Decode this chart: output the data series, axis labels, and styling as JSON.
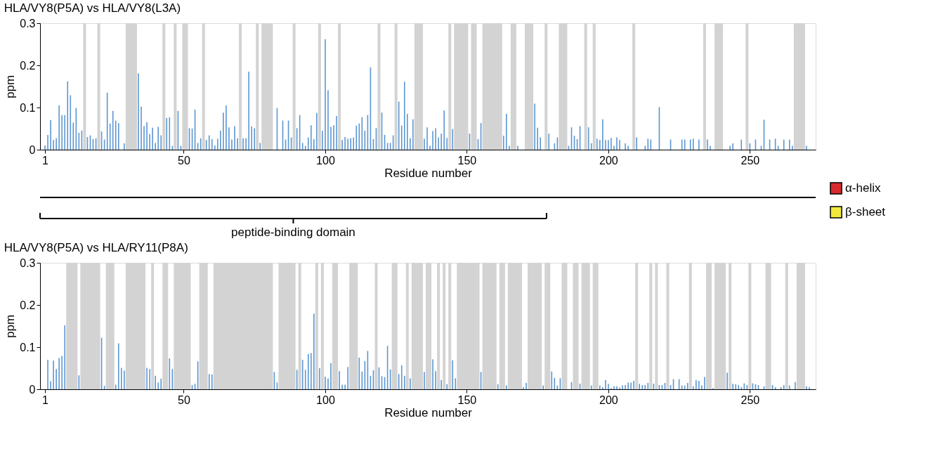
{
  "chart_data": [
    {
      "type": "bar",
      "title": "HLA/VY8(P5A) vs HLA/VY8(L3A)",
      "xlabel": "Residue number",
      "ylabel": "ppm",
      "xlim": [
        0.5,
        272
      ],
      "xticks": [
        1,
        50,
        100,
        150,
        200,
        250
      ],
      "ylim": [
        0,
        0.3
      ],
      "yticks": [
        0,
        0.1,
        0.2,
        0.3
      ],
      "grid": false,
      "series": [
        {
          "color": "#5b96d1",
          "x": [
            1,
            2,
            3,
            4,
            5,
            6,
            7,
            8,
            9,
            10,
            11,
            12,
            13,
            14,
            16,
            17,
            18,
            19,
            21,
            22,
            23,
            24,
            25,
            26,
            27,
            29,
            34,
            35,
            36,
            37,
            38,
            39,
            40,
            41,
            42,
            44,
            45,
            46,
            48,
            49,
            52,
            53,
            54,
            55,
            56,
            58,
            59,
            60,
            61,
            62,
            63,
            64,
            65,
            66,
            67,
            68,
            69,
            71,
            72,
            73,
            74,
            75,
            77,
            83,
            84,
            85,
            86,
            87,
            88,
            90,
            91,
            92,
            93,
            94,
            95,
            96,
            97,
            99,
            100,
            101,
            102,
            103,
            104,
            106,
            107,
            108,
            109,
            110,
            111,
            112,
            113,
            114,
            115,
            116,
            117,
            118,
            120,
            121,
            122,
            123,
            124,
            126,
            127,
            128,
            129,
            130,
            131,
            135,
            136,
            137,
            138,
            139,
            140,
            141,
            142,
            143,
            145,
            151,
            154,
            155,
            163,
            164,
            165,
            168,
            174,
            175,
            176,
            179,
            181,
            182,
            186,
            187,
            188,
            189,
            190,
            193,
            194,
            196,
            197,
            198,
            199,
            200,
            201,
            202,
            203,
            204,
            206,
            207,
            210,
            213,
            214,
            215,
            218,
            222,
            226,
            227,
            229,
            230,
            232,
            235,
            236,
            243,
            244,
            247,
            250,
            252,
            254,
            255,
            257,
            259,
            260,
            262,
            264,
            265,
            270
          ],
          "values": [
            0.01,
            0.035,
            0.07,
            0.023,
            0.027,
            0.105,
            0.082,
            0.082,
            0.162,
            0.129,
            0.064,
            0.099,
            0.04,
            0.045,
            0.03,
            0.034,
            0.025,
            0.027,
            0.043,
            0.024,
            0.135,
            0.062,
            0.092,
            0.069,
            0.063,
            0.015,
            0.181,
            0.102,
            0.056,
            0.065,
            0.037,
            0.052,
            0.016,
            0.054,
            0.034,
            0.075,
            0.077,
            0.009,
            0.092,
            0.009,
            0.051,
            0.05,
            0.095,
            0.016,
            0.027,
            0.023,
            0.034,
            0.025,
            0.01,
            0.026,
            0.045,
            0.088,
            0.105,
            0.053,
            0.024,
            0.056,
            0.027,
            0.027,
            0.027,
            0.185,
            0.055,
            0.051,
            0.016,
            0.099,
            null,
            0.069,
            0.024,
            0.069,
            0.029,
            0.051,
            0.082,
            0.016,
            0.009,
            0.029,
            0.058,
            0.025,
            0.087,
            0.045,
            0.262,
            0.141,
            0.054,
            0.058,
            0.08,
            0.023,
            0.03,
            0.026,
            0.027,
            0.029,
            0.057,
            0.062,
            0.077,
            0.045,
            0.082,
            0.195,
            0.025,
            0.051,
            0.088,
            0.035,
            0.016,
            0.016,
            0.034,
            0.114,
            0.057,
            0.161,
            0.085,
            0.027,
            0.072,
            0.026,
            0.053,
            0.009,
            0.044,
            0.051,
            0.029,
            0.038,
            0.093,
            0.028,
            0.049,
            0.038,
            0.025,
            0.063,
            0.033,
            0.085,
            0.009,
            0.009,
            0.109,
            0.052,
            0.029,
            0.038,
            0.015,
            0.029,
            0.009,
            0.053,
            0.033,
            0.025,
            0.056,
            0.053,
            0.015,
            0.026,
            0.023,
            0.072,
            0.023,
            0.023,
            0.028,
            0.009,
            0.029,
            0.023,
            0.015,
            0.009,
            0.029,
            0.009,
            0.026,
            0.024,
            0.101,
            0.024,
            0.024,
            0.024,
            0.024,
            0.026,
            0.024,
            0.024,
            0.009,
            0.009,
            0.015,
            0.024,
            0.015,
            0.024,
            0.009,
            0.071,
            0.024,
            0.026,
            0.009,
            0.024,
            0.024,
            0.009,
            0.009
          ]
        }
      ],
      "bands": [
        {
          "axis": "x",
          "from": 14.5,
          "to": 15.5,
          "color": "#d3d3d3"
        },
        {
          "axis": "x",
          "from": 19.5,
          "to": 20.5,
          "color": "#d3d3d3"
        },
        {
          "axis": "x",
          "from": 29.5,
          "to": 33.5,
          "color": "#d3d3d3"
        },
        {
          "axis": "x",
          "from": 42.5,
          "to": 43.5,
          "color": "#d3d3d3"
        },
        {
          "axis": "x",
          "from": 46.5,
          "to": 47.5,
          "color": "#d3d3d3"
        },
        {
          "axis": "x",
          "from": 49.5,
          "to": 51.5,
          "color": "#d3d3d3"
        },
        {
          "axis": "x",
          "from": 56.5,
          "to": 57.5,
          "color": "#d3d3d3"
        },
        {
          "axis": "x",
          "from": 69.5,
          "to": 70.5,
          "color": "#d3d3d3"
        },
        {
          "axis": "x",
          "from": 75.5,
          "to": 76.5,
          "color": "#d3d3d3"
        },
        {
          "axis": "x",
          "from": 77.5,
          "to": 81.5,
          "color": "#d3d3d3"
        },
        {
          "axis": "x",
          "from": 88.5,
          "to": 89.5,
          "color": "#d3d3d3"
        },
        {
          "axis": "x",
          "from": 97.5,
          "to": 98.5,
          "color": "#d3d3d3"
        },
        {
          "axis": "x",
          "from": 104.5,
          "to": 105.5,
          "color": "#d3d3d3"
        },
        {
          "axis": "x",
          "from": 118.5,
          "to": 119.5,
          "color": "#d3d3d3"
        },
        {
          "axis": "x",
          "from": 124.5,
          "to": 125.5,
          "color": "#d3d3d3"
        },
        {
          "axis": "x",
          "from": 131.5,
          "to": 134.5,
          "color": "#d3d3d3"
        },
        {
          "axis": "x",
          "from": 143.5,
          "to": 144.5,
          "color": "#d3d3d3"
        },
        {
          "axis": "x",
          "from": 145.5,
          "to": 150.5,
          "color": "#d3d3d3"
        },
        {
          "axis": "x",
          "from": 151.5,
          "to": 153.5,
          "color": "#d3d3d3"
        },
        {
          "axis": "x",
          "from": 155.5,
          "to": 162.5,
          "color": "#d3d3d3"
        },
        {
          "axis": "x",
          "from": 165.5,
          "to": 167.5,
          "color": "#d3d3d3"
        },
        {
          "axis": "x",
          "from": 170.5,
          "to": 173.5,
          "color": "#d3d3d3"
        },
        {
          "axis": "x",
          "from": 177.5,
          "to": 178.5,
          "color": "#d3d3d3"
        },
        {
          "axis": "x",
          "from": 182.5,
          "to": 185.5,
          "color": "#d3d3d3"
        },
        {
          "axis": "x",
          "from": 191.5,
          "to": 192.5,
          "color": "#d3d3d3"
        },
        {
          "axis": "x",
          "from": 194.5,
          "to": 195.5,
          "color": "#d3d3d3"
        },
        {
          "axis": "x",
          "from": 208.5,
          "to": 209.5,
          "color": "#d3d3d3"
        },
        {
          "axis": "x",
          "from": 233.5,
          "to": 234.5,
          "color": "#d3d3d3"
        },
        {
          "axis": "x",
          "from": 237.5,
          "to": 240.5,
          "color": "#d3d3d3"
        },
        {
          "axis": "x",
          "from": 248.5,
          "to": 249.5,
          "color": "#d3d3d3"
        },
        {
          "axis": "x",
          "from": 265.5,
          "to": 269.5,
          "color": "#d3d3d3"
        }
      ]
    },
    {
      "type": "other",
      "legend": "right",
      "annotations": [
        "peptide-binding domain"
      ],
      "series": [
        {
          "name": "α-helix",
          "color": "#d62a2e"
        },
        {
          "name": "β-sheet",
          "color": "#f2e93d"
        }
      ]
    },
    {
      "type": "bar",
      "title": "HLA/VY8(P5A) vs HLA/RY11(P8A)",
      "xlabel": "Residue number",
      "ylabel": "ppm",
      "xlim": [
        0.5,
        272
      ],
      "xticks": [
        1,
        50,
        100,
        150,
        200,
        250
      ],
      "ylim": [
        0,
        0.3
      ],
      "yticks": [
        0,
        0.1,
        0.2,
        0.3
      ],
      "grid": false,
      "series": [
        {
          "color": "#5b96d1",
          "x": [
            2,
            3,
            4,
            5,
            6,
            7,
            8,
            13,
            21,
            22,
            26,
            27,
            28,
            29,
            37,
            38,
            40,
            41,
            42,
            45,
            46,
            53,
            54,
            55,
            59,
            60,
            82,
            83,
            90,
            92,
            93,
            94,
            95,
            96,
            98,
            100,
            101,
            102,
            105,
            106,
            107,
            108,
            112,
            113,
            114,
            115,
            116,
            117,
            119,
            120,
            121,
            122,
            123,
            126,
            127,
            128,
            130,
            135,
            138,
            139,
            141,
            143,
            145,
            146,
            155,
            161,
            164,
            170,
            171,
            177,
            180,
            181,
            182,
            183,
            186,
            187,
            190,
            194,
            197,
            198,
            199,
            200,
            201,
            202,
            203,
            204,
            205,
            206,
            207,
            208,
            209,
            211,
            212,
            213,
            214,
            216,
            218,
            219,
            220,
            222,
            223,
            225,
            226,
            227,
            228,
            230,
            231,
            232,
            233,
            234,
            237,
            242,
            244,
            245,
            246,
            247,
            248,
            249,
            251,
            252,
            253,
            254,
            255,
            258,
            259,
            261,
            262,
            264,
            266,
            270,
            271
          ],
          "values": [
            0.07,
            0.019,
            0.068,
            0.048,
            0.074,
            0.079,
            0.152,
            0.033,
            0.122,
            0.008,
            0.011,
            0.109,
            0.051,
            0.044,
            0.051,
            0.048,
            0.032,
            0.016,
            0.025,
            0.073,
            0.048,
            0.01,
            0.013,
            0.066,
            0.036,
            0.035,
            0.041,
            0.016,
            0.046,
            0.07,
            0.046,
            0.084,
            0.086,
            0.179,
            0.05,
            0.03,
            0.026,
            0.062,
            0.043,
            0.011,
            0.011,
            0.053,
            0.075,
            0.042,
            0.067,
            0.091,
            0.032,
            0.045,
            0.052,
            0.031,
            0.029,
            0.103,
            0.047,
            0.036,
            0.057,
            0.032,
            0.026,
            0.041,
            0.071,
            0.043,
            0.022,
            0.012,
            0.069,
            0.026,
            0.041,
            0.012,
            0.009,
            0.005,
            0.015,
            0.009,
            0.042,
            0.027,
            0.009,
            0.026,
            null,
            0.017,
            0.013,
            0.009,
            0.009,
            0.005,
            0.022,
            0.013,
            0.003,
            0.007,
            0.007,
            0.004,
            0.009,
            0.01,
            0.016,
            0.016,
            0.02,
            0.013,
            0.01,
            0.01,
            0.015,
            0.013,
            0.01,
            0.01,
            0.015,
            0.01,
            0.024,
            0.024,
            0.009,
            0.009,
            0.015,
            0.007,
            0.022,
            0.02,
            0.009,
            0.029,
            0.003,
            0.039,
            0.013,
            0.012,
            0.01,
            0.005,
            0.014,
            0.01,
            0.014,
            0.012,
            0.01,
            null,
            0.007,
            0.01,
            0.005,
            0.005,
            0.01,
            0.009,
            0.017,
            0.007,
            0.005
          ]
        }
      ],
      "bands": [
        {
          "axis": "x",
          "from": 8.5,
          "to": 12.5,
          "color": "#d3d3d3"
        },
        {
          "axis": "x",
          "from": 13.5,
          "to": 20.5,
          "color": "#d3d3d3"
        },
        {
          "axis": "x",
          "from": 22.5,
          "to": 25.5,
          "color": "#d3d3d3"
        },
        {
          "axis": "x",
          "from": 29.5,
          "to": 36.5,
          "color": "#d3d3d3"
        },
        {
          "axis": "x",
          "from": 38.5,
          "to": 39.5,
          "color": "#d3d3d3"
        },
        {
          "axis": "x",
          "from": 42.5,
          "to": 44.5,
          "color": "#d3d3d3"
        },
        {
          "axis": "x",
          "from": 46.5,
          "to": 52.5,
          "color": "#d3d3d3"
        },
        {
          "axis": "x",
          "from": 55.5,
          "to": 58.5,
          "color": "#d3d3d3"
        },
        {
          "axis": "x",
          "from": 60.5,
          "to": 81.5,
          "color": "#d3d3d3"
        },
        {
          "axis": "x",
          "from": 83.5,
          "to": 89.5,
          "color": "#d3d3d3"
        },
        {
          "axis": "x",
          "from": 90.5,
          "to": 91.5,
          "color": "#d3d3d3"
        },
        {
          "axis": "x",
          "from": 96.5,
          "to": 97.5,
          "color": "#d3d3d3"
        },
        {
          "axis": "x",
          "from": 98.5,
          "to": 99.5,
          "color": "#d3d3d3"
        },
        {
          "axis": "x",
          "from": 102.5,
          "to": 104.5,
          "color": "#d3d3d3"
        },
        {
          "axis": "x",
          "from": 108.5,
          "to": 111.5,
          "color": "#d3d3d3"
        },
        {
          "axis": "x",
          "from": 117.5,
          "to": 118.5,
          "color": "#d3d3d3"
        },
        {
          "axis": "x",
          "from": 123.5,
          "to": 125.5,
          "color": "#d3d3d3"
        },
        {
          "axis": "x",
          "from": 128.5,
          "to": 129.5,
          "color": "#d3d3d3"
        },
        {
          "axis": "x",
          "from": 130.5,
          "to": 134.5,
          "color": "#d3d3d3"
        },
        {
          "axis": "x",
          "from": 135.5,
          "to": 137.5,
          "color": "#d3d3d3"
        },
        {
          "axis": "x",
          "from": 139.5,
          "to": 140.5,
          "color": "#d3d3d3"
        },
        {
          "axis": "x",
          "from": 141.5,
          "to": 142.5,
          "color": "#d3d3d3"
        },
        {
          "axis": "x",
          "from": 143.5,
          "to": 144.5,
          "color": "#d3d3d3"
        },
        {
          "axis": "x",
          "from": 146.5,
          "to": 154.5,
          "color": "#d3d3d3"
        },
        {
          "axis": "x",
          "from": 155.5,
          "to": 160.5,
          "color": "#d3d3d3"
        },
        {
          "axis": "x",
          "from": 161.5,
          "to": 163.5,
          "color": "#d3d3d3"
        },
        {
          "axis": "x",
          "from": 164.5,
          "to": 169.5,
          "color": "#d3d3d3"
        },
        {
          "axis": "x",
          "from": 171.5,
          "to": 176.5,
          "color": "#d3d3d3"
        },
        {
          "axis": "x",
          "from": 177.5,
          "to": 179.5,
          "color": "#d3d3d3"
        },
        {
          "axis": "x",
          "from": 183.5,
          "to": 185.5,
          "color": "#d3d3d3"
        },
        {
          "axis": "x",
          "from": 187.5,
          "to": 189.5,
          "color": "#d3d3d3"
        },
        {
          "axis": "x",
          "from": 190.5,
          "to": 193.5,
          "color": "#d3d3d3"
        },
        {
          "axis": "x",
          "from": 194.5,
          "to": 196.5,
          "color": "#d3d3d3"
        },
        {
          "axis": "x",
          "from": 209.5,
          "to": 210.5,
          "color": "#d3d3d3"
        },
        {
          "axis": "x",
          "from": 214.5,
          "to": 215.5,
          "color": "#d3d3d3"
        },
        {
          "axis": "x",
          "from": 216.5,
          "to": 217.5,
          "color": "#d3d3d3"
        },
        {
          "axis": "x",
          "from": 220.5,
          "to": 221.5,
          "color": "#d3d3d3"
        },
        {
          "axis": "x",
          "from": 228.5,
          "to": 229.5,
          "color": "#d3d3d3"
        },
        {
          "axis": "x",
          "from": 234.5,
          "to": 236.5,
          "color": "#d3d3d3"
        },
        {
          "axis": "x",
          "from": 237.5,
          "to": 241.5,
          "color": "#d3d3d3"
        },
        {
          "axis": "x",
          "from": 242.5,
          "to": 243.5,
          "color": "#d3d3d3"
        },
        {
          "axis": "x",
          "from": 249.5,
          "to": 250.5,
          "color": "#d3d3d3"
        },
        {
          "axis": "x",
          "from": 255.5,
          "to": 257.5,
          "color": "#d3d3d3"
        },
        {
          "axis": "x",
          "from": 262.5,
          "to": 263.5,
          "color": "#d3d3d3"
        },
        {
          "axis": "x",
          "from": 266.5,
          "to": 269.5,
          "color": "#d3d3d3"
        }
      ]
    }
  ]
}
